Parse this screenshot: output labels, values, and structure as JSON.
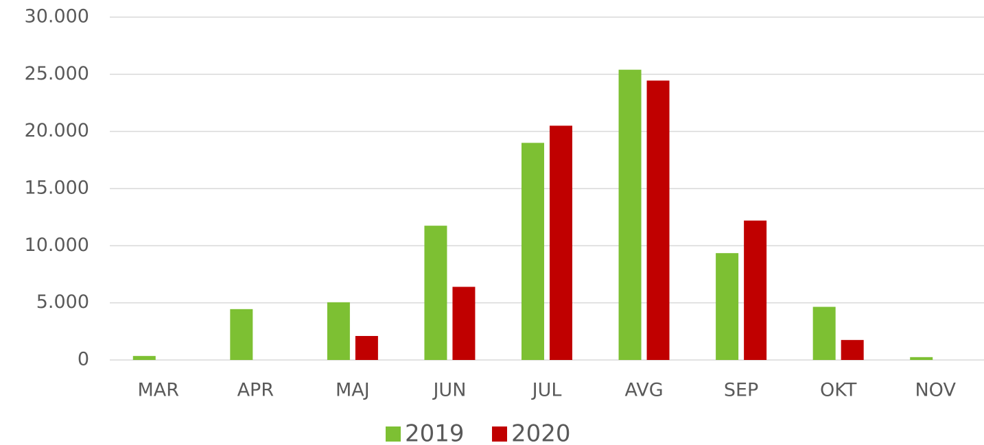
{
  "chart_data": {
    "type": "bar",
    "categories": [
      "MAR",
      "APR",
      "MAJ",
      "JUN",
      "JUL",
      "AVG",
      "SEP",
      "OKT",
      "NOV"
    ],
    "series": [
      {
        "name": "2019",
        "color": "#7dc033",
        "values": [
          350,
          4450,
          5050,
          11750,
          19000,
          25400,
          9350,
          4650,
          250
        ]
      },
      {
        "name": "2020",
        "color": "#c00000",
        "values": [
          null,
          null,
          2100,
          6400,
          20500,
          24450,
          12200,
          1750,
          null
        ]
      }
    ],
    "ylim": [
      0,
      30000
    ],
    "yticks": [
      0,
      {
        "value": 5000,
        "label": "5.000"
      },
      {
        "value": 10000,
        "label": "10.000"
      },
      {
        "value": 15000,
        "label": "15.000"
      },
      {
        "value": 20000,
        "label": "20.000"
      },
      {
        "value": 25000,
        "label": "25.000"
      },
      {
        "value": 30000,
        "label": "30.000"
      }
    ],
    "grid": true,
    "legend": "bottom"
  }
}
